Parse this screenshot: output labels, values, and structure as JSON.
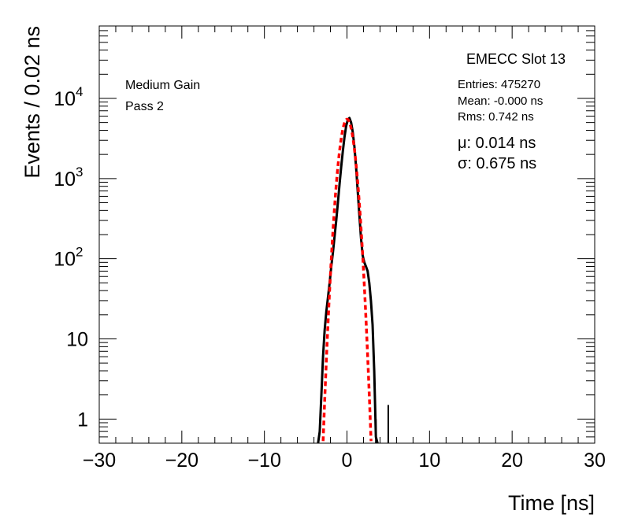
{
  "chart_data": {
    "type": "histogram",
    "title": "EMECC Slot 13",
    "xlabel": "Time [ns]",
    "ylabel": "Events / 0.02 ns",
    "xlim": [
      -30,
      30
    ],
    "ylim": [
      0.5,
      80000
    ],
    "yscale": "log",
    "x_ticks": [
      -30,
      -20,
      -10,
      0,
      10,
      20,
      30
    ],
    "x_tick_labels": [
      "−30",
      "−20",
      "−10",
      "0",
      "10",
      "20",
      "30"
    ],
    "y_tick_labels": [
      {
        "value": 1,
        "base": "1",
        "exp": ""
      },
      {
        "value": 10,
        "base": "10",
        "exp": ""
      },
      {
        "value": 100,
        "base": "10",
        "exp": "2"
      },
      {
        "value": 1000,
        "base": "10",
        "exp": "3"
      },
      {
        "value": 10000,
        "base": "10",
        "exp": "4"
      }
    ],
    "annotations": {
      "gain": "Medium Gain",
      "pass": "Pass 2"
    },
    "stats": {
      "entries": "Entries: 475270",
      "mean": "Mean: -0.000 ns",
      "rms": "Rms: 0.742 ns"
    },
    "fit_results": {
      "mu": "μ: 0.014 ns",
      "sigma": "σ: 0.675 ns"
    },
    "fit": {
      "type": "gaussian",
      "mu": 0.014,
      "sigma": 0.675,
      "amplitude": 5500,
      "color": "#ff0000"
    },
    "series": [
      {
        "name": "data",
        "color": "#000000",
        "points": [
          [
            -3.5,
            0.5
          ],
          [
            -3.3,
            0.7
          ],
          [
            -3.1,
            2
          ],
          [
            -2.9,
            6
          ],
          [
            -2.7,
            13
          ],
          [
            -2.5,
            22
          ],
          [
            -2.3,
            33
          ],
          [
            -2.1,
            50
          ],
          [
            -1.9,
            80
          ],
          [
            -1.7,
            120
          ],
          [
            -1.5,
            190
          ],
          [
            -1.3,
            300
          ],
          [
            -1.1,
            500
          ],
          [
            -0.9,
            850
          ],
          [
            -0.7,
            1400
          ],
          [
            -0.5,
            2200
          ],
          [
            -0.3,
            3300
          ],
          [
            -0.1,
            4500
          ],
          [
            0.1,
            5400
          ],
          [
            0.3,
            5700
          ],
          [
            0.5,
            5000
          ],
          [
            0.7,
            3800
          ],
          [
            0.9,
            2500
          ],
          [
            1.1,
            1400
          ],
          [
            1.3,
            700
          ],
          [
            1.5,
            350
          ],
          [
            1.7,
            180
          ],
          [
            1.9,
            110
          ],
          [
            2.1,
            90
          ],
          [
            2.3,
            80
          ],
          [
            2.5,
            70
          ],
          [
            2.7,
            50
          ],
          [
            2.9,
            30
          ],
          [
            3.1,
            15
          ],
          [
            3.3,
            4
          ],
          [
            3.5,
            0.6
          ],
          [
            3.7,
            0.5
          ]
        ],
        "outliers": [
          [
            3.5,
            1
          ],
          [
            5.0,
            1.5
          ]
        ]
      }
    ]
  }
}
